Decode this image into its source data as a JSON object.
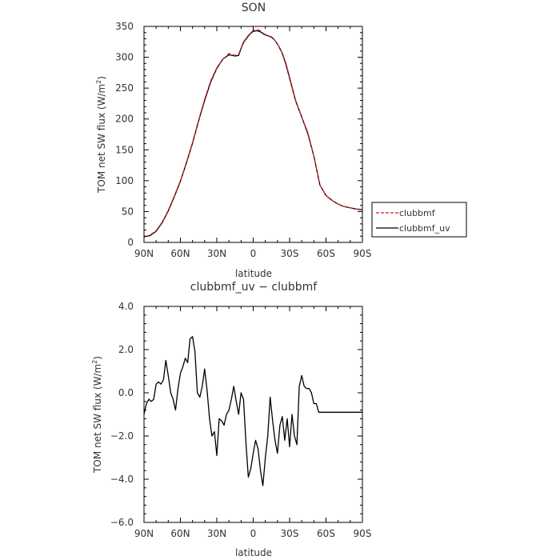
{
  "chart_data": [
    {
      "type": "line",
      "title": "SON",
      "xlabel": "latitude",
      "ylabel": "TOM net SW flux (W/m²)",
      "ylabel_main": "TOM net SW flux (W/m",
      "ylabel_sup": "2",
      "ylabel_close": ")",
      "xlim": [
        90,
        -90
      ],
      "ylim": [
        0,
        350
      ],
      "x_ticks": [
        90,
        60,
        30,
        0,
        -30,
        -60,
        -90
      ],
      "x_tick_labels": [
        "90N",
        "60N",
        "30N",
        "0",
        "30S",
        "60S",
        "90S"
      ],
      "y_ticks": [
        0,
        50,
        100,
        150,
        200,
        250,
        300,
        350
      ],
      "y_tick_labels": [
        "0",
        "50",
        "100",
        "150",
        "200",
        "250",
        "300",
        "350"
      ],
      "legend_position": "right",
      "series": [
        {
          "name": "clubbmf",
          "color": "#cc2222",
          "dash": "dashed",
          "x": [
            90,
            85,
            80,
            75,
            70,
            65,
            60,
            55,
            50,
            45,
            40,
            35,
            30,
            25,
            20,
            15,
            12,
            10,
            8,
            5,
            2,
            0,
            -3,
            -6,
            -9,
            -12,
            -15,
            -18,
            -21,
            -24,
            -27,
            -30,
            -35,
            -40,
            -45,
            -50,
            -55,
            -60,
            -65,
            -70,
            -75,
            -80,
            -85,
            -90
          ],
          "y": [
            9,
            12,
            19,
            33,
            52,
            75,
            100,
            130,
            162,
            198,
            232,
            262,
            283,
            297,
            306,
            303,
            305,
            315,
            325,
            333,
            340,
            343,
            345,
            343,
            338,
            335,
            332,
            327,
            318,
            307,
            290,
            268,
            230,
            203,
            178,
            140,
            93,
            76,
            68,
            62,
            58,
            56,
            54,
            53
          ]
        },
        {
          "name": "clubbmf_uv",
          "color": "#000000",
          "dash": "solid",
          "x": [
            90,
            85,
            80,
            75,
            70,
            65,
            60,
            55,
            50,
            45,
            40,
            35,
            30,
            25,
            20,
            15,
            12,
            10,
            8,
            5,
            2,
            0,
            -3,
            -6,
            -9,
            -12,
            -15,
            -18,
            -21,
            -24,
            -27,
            -30,
            -35,
            -40,
            -45,
            -50,
            -55,
            -60,
            -65,
            -70,
            -75,
            -80,
            -85,
            -90
          ],
          "y": [
            9,
            11,
            18,
            32,
            51,
            74,
            99,
            129,
            161,
            197,
            230,
            260,
            282,
            297,
            304,
            302,
            303,
            314,
            324,
            332,
            339,
            342,
            343,
            341,
            337,
            335,
            333,
            327,
            318,
            306,
            288,
            266,
            229,
            203,
            176,
            140,
            93,
            76,
            68,
            62,
            58,
            56,
            54,
            53
          ]
        }
      ]
    },
    {
      "type": "line",
      "title": "clubbmf_uv − clubbmf",
      "xlabel": "latitude",
      "ylabel": "TOM net SW flux (W/m²)",
      "ylabel_main": "TOM net SW flux (W/m",
      "ylabel_sup": "2",
      "ylabel_close": ")",
      "xlim": [
        90,
        -90
      ],
      "ylim": [
        -6,
        4
      ],
      "x_ticks": [
        90,
        60,
        30,
        0,
        -30,
        -60,
        -90
      ],
      "x_tick_labels": [
        "90N",
        "60N",
        "30N",
        "0",
        "30S",
        "60S",
        "90S"
      ],
      "y_ticks": [
        -6,
        -4,
        -2,
        0,
        2,
        4
      ],
      "y_tick_labels": [
        "−6.0",
        "−4.0",
        "−2.0",
        "0.0",
        "2.0",
        "4.0"
      ],
      "series": [
        {
          "color": "#000000",
          "dash": "solid",
          "x": [
            90,
            88,
            86,
            84,
            82,
            80,
            78,
            76,
            74,
            72,
            70,
            68,
            66,
            64,
            62,
            60,
            58,
            56,
            54,
            52,
            50,
            48,
            46,
            44,
            42,
            40,
            38,
            36,
            34,
            32,
            30,
            28,
            26,
            24,
            22,
            20,
            18,
            16,
            14,
            12,
            10,
            8,
            6,
            4,
            2,
            0,
            -2,
            -4,
            -6,
            -8,
            -10,
            -12,
            -14,
            -16,
            -18,
            -20,
            -22,
            -24,
            -26,
            -28,
            -30,
            -32,
            -34,
            -36,
            -38,
            -40,
            -42,
            -44,
            -46,
            -48,
            -50,
            -52,
            -54,
            -56,
            -58,
            -60,
            -62,
            -64,
            -66,
            -68,
            -70,
            -72,
            -74,
            -76,
            -78,
            -80,
            -82,
            -84,
            -86,
            -88,
            -90
          ],
          "y": [
            -1.0,
            -0.5,
            -0.3,
            -0.4,
            -0.3,
            0.4,
            0.5,
            0.4,
            0.6,
            1.5,
            0.8,
            0.0,
            -0.3,
            -0.8,
            0.2,
            0.9,
            1.2,
            1.6,
            1.4,
            2.5,
            2.6,
            1.9,
            0.0,
            -0.2,
            0.3,
            1.1,
            0.1,
            -1.2,
            -2.0,
            -1.8,
            -2.9,
            -1.2,
            -1.3,
            -1.5,
            -1.0,
            -0.8,
            -0.3,
            0.3,
            -0.4,
            -1.0,
            0.0,
            -0.3,
            -2.3,
            -3.9,
            -3.5,
            -2.8,
            -2.2,
            -2.6,
            -3.6,
            -4.3,
            -3.0,
            -2.0,
            -0.2,
            -1.3,
            -2.2,
            -2.8,
            -1.5,
            -1.1,
            -2.2,
            -1.2,
            -2.5,
            -1.0,
            -2.0,
            -2.4,
            0.3,
            0.8,
            0.3,
            0.2,
            0.2,
            0.0,
            -0.5,
            -0.5,
            -0.9,
            -0.9,
            -0.9,
            -0.9,
            -0.9,
            -0.9,
            -0.9,
            -0.9,
            -0.9,
            -0.9,
            -0.9,
            -0.9,
            -0.9,
            -0.9,
            -0.9,
            -0.9,
            -0.9,
            -0.9,
            -0.9
          ]
        }
      ]
    }
  ]
}
